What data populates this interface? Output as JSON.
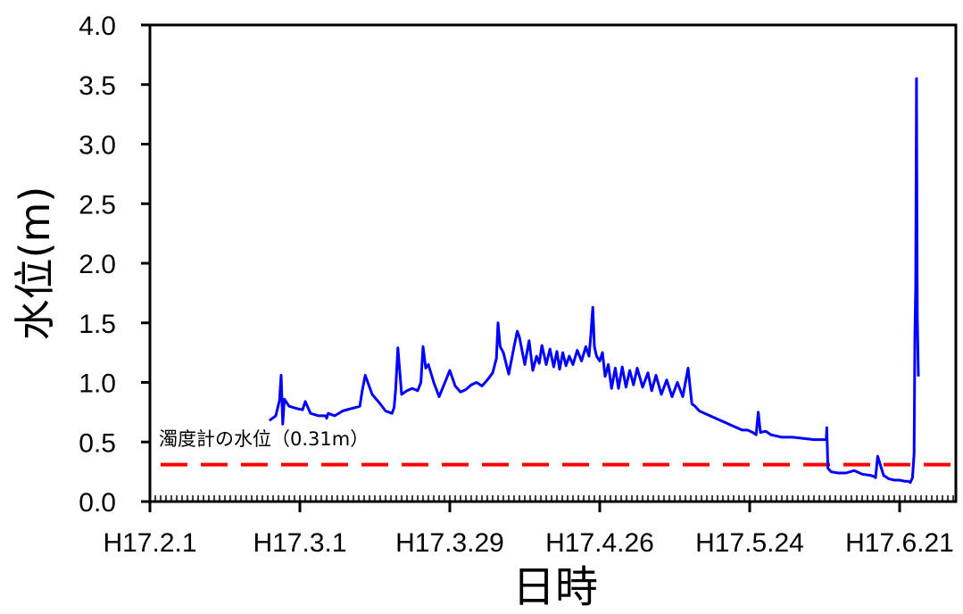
{
  "chart_data": {
    "type": "line",
    "title": "",
    "xlabel": "日時",
    "ylabel": "水位(m)",
    "x_ticks": [
      {
        "label": "H17.2.1",
        "day": 0
      },
      {
        "label": "H17.3.1",
        "day": 28
      },
      {
        "label": "H17.3.29",
        "day": 56
      },
      {
        "label": "H17.4.26",
        "day": 84
      },
      {
        "label": "H17.5.24",
        "day": 112
      },
      {
        "label": "H17.6.21",
        "day": 140
      }
    ],
    "xlim_label": [
      "H17.2.1",
      "H17.7.1"
    ],
    "ylim": [
      0.0,
      4.0
    ],
    "y_ticks": [
      "0.0",
      "0.5",
      "1.0",
      "1.5",
      "2.0",
      "2.5",
      "3.0",
      "3.5",
      "4.0"
    ],
    "grid": false,
    "legend": "none",
    "series": [
      {
        "color": "#0000ff",
        "x": [
          22.3,
          23.5,
          24.2,
          24.5,
          24.8,
          25.1,
          25.4,
          26,
          27.5,
          28.5,
          29,
          30,
          31.5,
          32.8,
          33,
          33.3,
          34.5,
          36,
          37.5,
          38.5,
          39.2,
          39.6,
          40.2,
          41.5,
          43,
          44,
          45.2,
          45.6,
          45.9,
          46.3,
          47,
          48,
          49,
          50,
          50.6,
          51,
          51.5,
          52,
          53,
          54,
          55,
          56,
          57,
          58,
          59,
          60,
          61,
          62,
          63,
          64,
          64.7,
          65,
          65.4,
          66,
          67,
          68,
          68.6,
          69,
          70,
          70.8,
          71.5,
          72.2,
          72.7,
          73.2,
          74,
          74.7,
          75.4,
          76,
          76.5,
          77.1,
          77.7,
          78.3,
          79,
          79.8,
          80.6,
          81.4,
          82,
          82.3,
          82.7,
          83,
          83.4,
          84,
          84.5,
          85,
          85.6,
          86.2,
          86.9,
          87.5,
          88.2,
          88.9,
          89.6,
          90.3,
          91,
          92,
          93,
          93.7,
          94.5,
          95.5,
          96.5,
          97.5,
          98.5,
          99.5,
          100.5,
          101.2,
          101.8,
          102.6,
          103.6,
          104.6,
          105.6,
          106.6,
          107.6,
          108.6,
          109.6,
          110.6,
          111.6,
          112.6,
          113.2,
          113.6,
          114,
          115,
          116,
          117,
          118,
          120,
          122,
          124,
          125,
          126,
          126.3,
          126.4,
          126.6,
          127.2,
          128.5,
          130,
          131.5,
          133,
          134.5,
          135.3,
          135.5,
          135.9,
          137,
          138,
          139,
          140,
          141,
          141.6,
          142.0,
          142.4,
          142.7,
          142.85,
          143.0,
          143.15,
          143.3,
          143.5
        ],
        "y": [
          0.68,
          0.72,
          0.85,
          1.06,
          0.65,
          0.86,
          0.84,
          0.8,
          0.78,
          0.77,
          0.84,
          0.74,
          0.72,
          0.72,
          0.7,
          0.74,
          0.72,
          0.76,
          0.78,
          0.79,
          0.8,
          0.92,
          1.06,
          0.9,
          0.82,
          0.76,
          0.74,
          0.79,
          0.95,
          1.29,
          0.9,
          0.93,
          0.95,
          0.93,
          1.0,
          1.3,
          1.12,
          1.15,
          1.0,
          0.88,
          0.99,
          1.1,
          0.97,
          0.92,
          0.94,
          0.98,
          1.0,
          0.97,
          1.02,
          1.08,
          1.2,
          1.5,
          1.3,
          1.25,
          1.07,
          1.3,
          1.43,
          1.38,
          1.15,
          1.35,
          1.1,
          1.22,
          1.16,
          1.31,
          1.15,
          1.28,
          1.13,
          1.26,
          1.11,
          1.25,
          1.14,
          1.22,
          1.15,
          1.27,
          1.18,
          1.3,
          1.22,
          1.38,
          1.63,
          1.3,
          1.22,
          1.18,
          1.25,
          1.05,
          1.15,
          0.95,
          1.12,
          0.95,
          1.13,
          0.96,
          1.1,
          0.98,
          1.12,
          0.96,
          1.08,
          0.93,
          1.06,
          0.9,
          1.02,
          0.88,
          1.0,
          0.88,
          1.12,
          0.82,
          0.8,
          0.76,
          0.74,
          0.72,
          0.7,
          0.68,
          0.66,
          0.64,
          0.62,
          0.6,
          0.6,
          0.58,
          0.56,
          0.75,
          0.58,
          0.59,
          0.56,
          0.55,
          0.54,
          0.54,
          0.53,
          0.52,
          0.52,
          0.52,
          0.52,
          0.62,
          0.28,
          0.25,
          0.24,
          0.24,
          0.26,
          0.23,
          0.22,
          0.21,
          0.2,
          0.38,
          0.22,
          0.19,
          0.18,
          0.18,
          0.17,
          0.17,
          0.16,
          0.2,
          0.4,
          1.4,
          1.8,
          3.55,
          1.55,
          1.05
        ]
      }
    ],
    "threshold": {
      "label": "濁度計の水位（0.31m）",
      "value": 0.31,
      "color": "#ff0000",
      "style": "dashed"
    }
  }
}
